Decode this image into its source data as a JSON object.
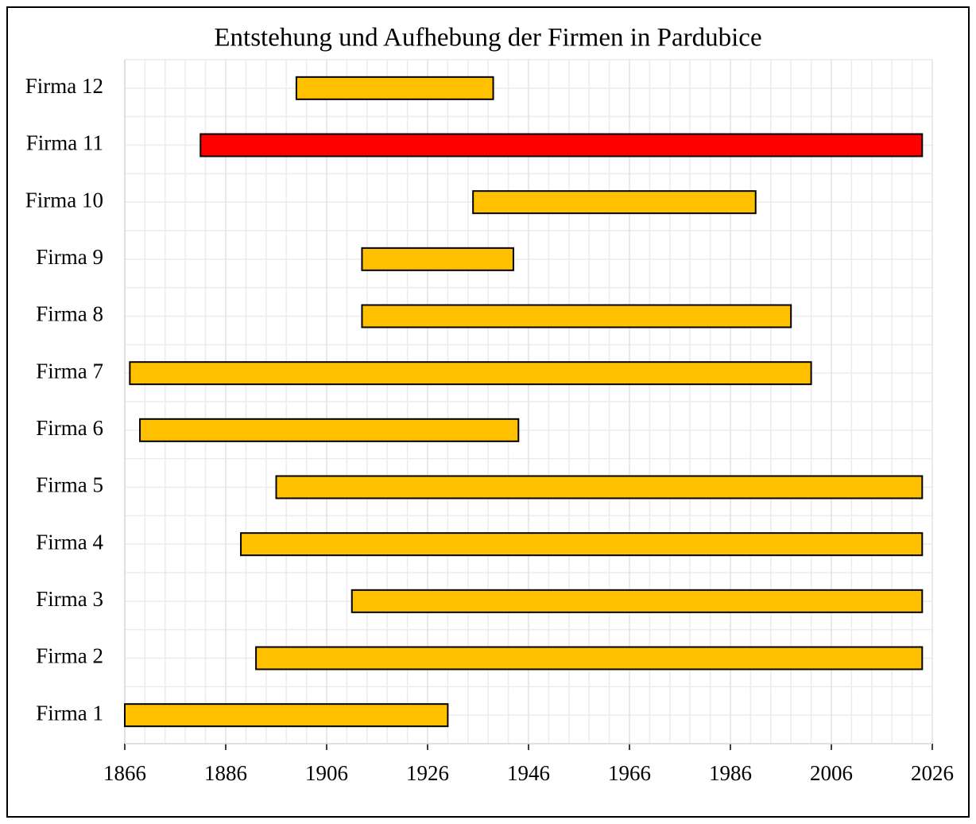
{
  "chart_data": {
    "type": "floating-bar",
    "title": "Entstehung und Aufhebung der Firmen in Pardubice",
    "categories": [
      "Firma 1",
      "Firma 2",
      "Firma 3",
      "Firma 4",
      "Firma 5",
      "Firma 6",
      "Firma 7",
      "Firma 8",
      "Firma 9",
      "Firma 10",
      "Firma 11",
      "Firma 12"
    ],
    "start": [
      1866,
      1892,
      1911,
      1889,
      1896,
      1869,
      1867,
      1913,
      1913,
      1935,
      1881,
      1900
    ],
    "end": [
      1930,
      2024,
      2024,
      2024,
      2024,
      1944,
      2002,
      1998,
      1943,
      1991,
      2024,
      1939
    ],
    "colors": [
      "#ffc000",
      "#ffc000",
      "#ffc000",
      "#ffc000",
      "#ffc000",
      "#ffc000",
      "#ffc000",
      "#ffc000",
      "#ffc000",
      "#ffc000",
      "#ff0000",
      "#ffc000"
    ],
    "xlim": [
      1866,
      2026
    ],
    "xticks": [
      1866,
      1886,
      1906,
      1926,
      1946,
      1966,
      1986,
      2006,
      2026
    ],
    "grid": true
  }
}
